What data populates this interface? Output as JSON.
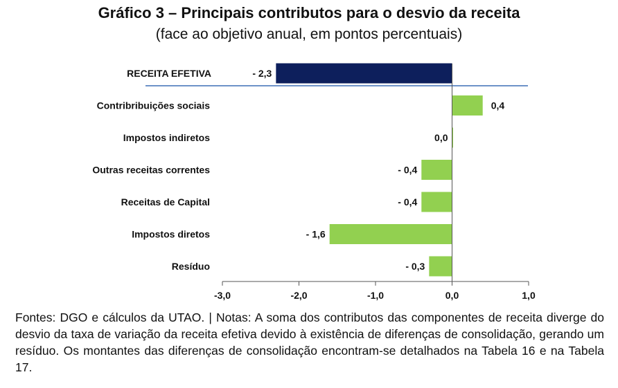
{
  "title": "Gráfico 3 – Principais contributos para o desvio da receita",
  "subtitle": "(face ao objetivo anual, em pontos percentuais)",
  "note": "Fontes: DGO e cálculos da UTAO. | Notas: A soma dos contributos das componentes de receita diverge do desvio da taxa de variação da receita efetiva devido à existência de diferenças de consolidação, gerando um resíduo. Os montantes das diferenças de consolidação encontram-se detalhados na Tabela 16 e na Tabela 17.",
  "chart_data": {
    "type": "bar",
    "orientation": "horizontal",
    "categories": [
      "RECEITA EFETIVA",
      "Contribribuições sociais",
      "Impostos indiretos",
      "Outras receitas correntes",
      "Receitas de Capital",
      "Impostos diretos",
      "Resíduo"
    ],
    "values": [
      -2.3,
      0.4,
      0.0,
      -0.4,
      -0.4,
      -1.6,
      -0.3
    ],
    "value_labels": [
      "- 2,3",
      "0,4",
      "0,0",
      "- 0,4",
      "- 0,4",
      "- 1,6",
      "- 0,3"
    ],
    "xlim": [
      -3.0,
      1.0
    ],
    "xticks": [
      -3.0,
      -2.0,
      -1.0,
      0.0,
      1.0
    ],
    "xtick_labels": [
      "-3,0",
      "-2,0",
      "-1,0",
      "0,0",
      "1,0"
    ],
    "colors": {
      "total": "#0d1f5c",
      "component": "#92d050",
      "separator": "#3b6fb6"
    },
    "grid": false,
    "legend": "none"
  }
}
